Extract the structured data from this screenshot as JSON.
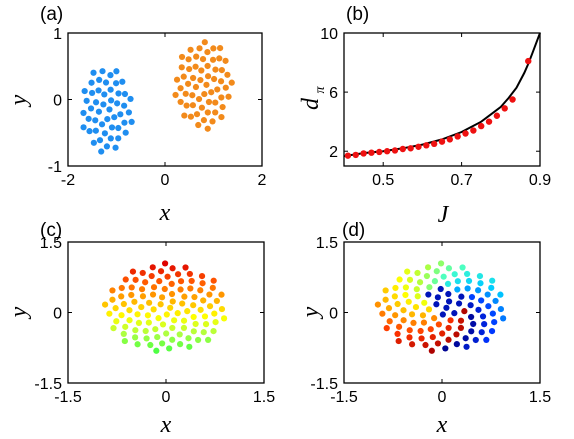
{
  "chart_data": [
    {
      "panel": "(a)",
      "type": "scatter",
      "xlabel": "x",
      "ylabel": "y",
      "xlim": [
        -2,
        2
      ],
      "ylim": [
        -1,
        1
      ],
      "xticks": [
        "-2",
        "0",
        "2"
      ],
      "yticks": [
        "-1",
        "0",
        "1"
      ],
      "series": [
        {
          "name": "",
          "color": "#1f8ef0",
          "shape": "ellipse",
          "cx": -1.2,
          "cy": -0.15,
          "rx": 0.55,
          "ry": 0.65,
          "n": 50
        },
        {
          "name": "",
          "color": "#f28a1b",
          "shape": "ellipse",
          "cx": 0.8,
          "cy": 0.22,
          "rx": 0.6,
          "ry": 0.68,
          "n": 60
        }
      ]
    },
    {
      "panel": "(b)",
      "type": "line",
      "xlabel": "J",
      "ylabel": "d",
      "ylabel_sub": "π",
      "xlim": [
        0.4,
        0.9
      ],
      "ylim": [
        1,
        10
      ],
      "xticks": [
        "0.5",
        "0.7",
        "0.9"
      ],
      "yticks": [
        "2",
        "6",
        "10"
      ],
      "series": [
        {
          "name": "",
          "kind": "line",
          "color": "#000000",
          "x": [
            0.4,
            0.45,
            0.5,
            0.55,
            0.6,
            0.65,
            0.7,
            0.75,
            0.78,
            0.8,
            0.82,
            0.84,
            0.86,
            0.87,
            0.88,
            0.89,
            0.9
          ],
          "y": [
            1.67,
            1.87,
            2.0,
            2.2,
            2.45,
            2.8,
            3.3,
            4.0,
            4.6,
            5.0,
            5.6,
            6.3,
            7.3,
            7.9,
            8.6,
            9.3,
            10.0
          ]
        },
        {
          "name": "",
          "kind": "markers",
          "color": "#ee1111",
          "x": [
            0.41,
            0.43,
            0.45,
            0.47,
            0.49,
            0.51,
            0.53,
            0.55,
            0.57,
            0.59,
            0.61,
            0.63,
            0.65,
            0.67,
            0.69,
            0.71,
            0.73,
            0.75,
            0.77,
            0.79,
            0.81,
            0.83,
            0.87
          ],
          "y": [
            1.7,
            1.75,
            1.85,
            1.9,
            1.95,
            2.0,
            2.05,
            2.15,
            2.2,
            2.3,
            2.4,
            2.5,
            2.65,
            2.8,
            3.0,
            3.2,
            3.4,
            3.7,
            4.0,
            4.4,
            4.9,
            5.5,
            8.1
          ]
        }
      ]
    },
    {
      "panel": "(c)",
      "type": "scatter",
      "xlabel": "x",
      "ylabel": "y",
      "xlim": [
        -1.5,
        1.5
      ],
      "ylim": [
        -1.5,
        1.5
      ],
      "xticks": [
        "-1.5",
        "0",
        "1.5"
      ],
      "yticks": [
        "-1.5",
        "0",
        "1.5"
      ],
      "coloring": "vertical-gradient",
      "palette": [
        "#44ff44",
        "#aaff44",
        "#ffff00",
        "#ffaa00",
        "#ff5500",
        "#dd0000"
      ],
      "cloud": {
        "cx": 0,
        "cy": 0.1,
        "rx": 0.95,
        "ry": 0.95,
        "n": 110
      }
    },
    {
      "panel": "(d)",
      "type": "scatter",
      "xlabel": "x",
      "ylabel": "y",
      "xlim": [
        -1.5,
        1.5
      ],
      "ylim": [
        -1.5,
        1.5
      ],
      "xticks": [
        "-1.5",
        "0",
        "1.5"
      ],
      "yticks": [
        "-1.5",
        "0",
        "1.5"
      ],
      "coloring": "vortex",
      "palette": [
        "#00008b",
        "#0033ff",
        "#00ccff",
        "#44ffcc",
        "#aaff44",
        "#ffff00",
        "#ffaa00",
        "#ff3300",
        "#aa0000"
      ],
      "cloud": {
        "cx": 0,
        "cy": 0.1,
        "rx": 1.0,
        "ry": 0.95,
        "n": 110
      }
    }
  ]
}
